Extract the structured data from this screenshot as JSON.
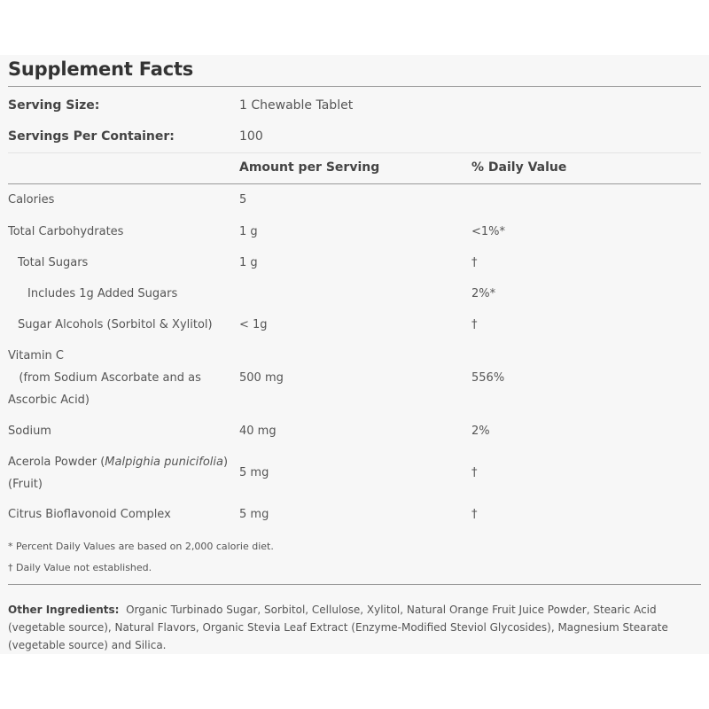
{
  "title": "Supplement Facts",
  "serving_size_label": "Serving Size:",
  "serving_size_value": "1 Chewable Tablet",
  "servings_label": "Servings Per Container:",
  "servings_value": "100",
  "amount_header": "Amount per Serving",
  "dv_header": "% Daily Value",
  "rows": [
    {
      "name": "Calories",
      "amount": "5",
      "dv": ""
    },
    {
      "name": "Total Carbohydrates",
      "amount": "1 g",
      "dv": "<1%*"
    },
    {
      "name": "Total Sugars",
      "amount": "1 g",
      "dv": "†"
    },
    {
      "name": "Includes 1g Added Sugars",
      "amount": "",
      "dv": "2%*"
    },
    {
      "name": "Sugar Alcohols (Sorbitol & Xylitol)",
      "amount": "< 1g",
      "dv": "†"
    },
    {
      "name_line1": "Vitamin C",
      "name_line2": "(from Sodium Ascorbate and as",
      "name_line3": "Ascorbic Acid)",
      "amount": "500 mg",
      "dv": "556%"
    },
    {
      "name": "Sodium",
      "amount": "40 mg",
      "dv": "2%"
    },
    {
      "name_line1": "Acerola Powder (",
      "name_italic": "Malpighia punicifolia",
      "name_line1_end": ")",
      "name_line2": "(Fruit)",
      "amount": "5 mg",
      "dv": "†"
    },
    {
      "name": "Citrus Bioflavonoid Complex",
      "amount": "5 mg",
      "dv": "†"
    }
  ],
  "footnote1": "* Percent Daily Values are based on 2,000 calorie diet.",
  "footnote2": "† Daily Value not established.",
  "ingredients_label": "Other Ingredients:",
  "ingredients_text": "Organic Turbinado Sugar, Sorbitol, Cellulose, Xylitol, Natural Orange Fruit Juice Powder, Stearic Acid (vegetable source), Natural Flavors, Organic Stevia Leaf Extract (Enzyme-Modified Steviol Glycosides), Magnesium Stearate (vegetable source) and Silica."
}
